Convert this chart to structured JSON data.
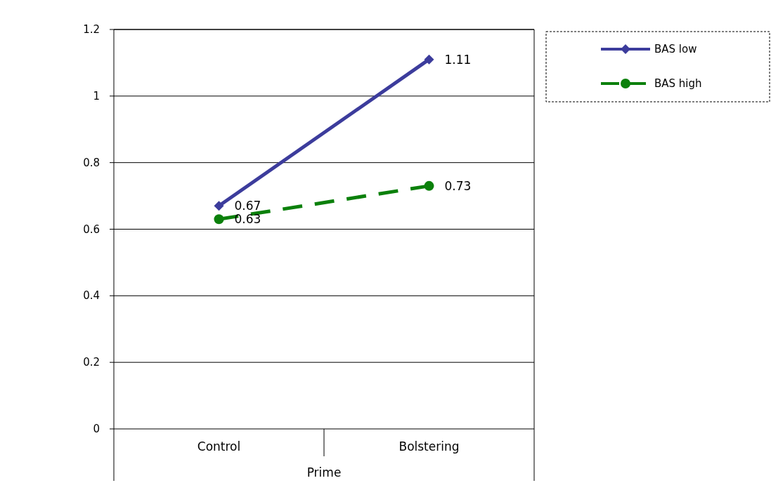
{
  "chart_data": {
    "type": "line",
    "xlabel": "Prime",
    "categories": [
      "Control",
      "Bolstering"
    ],
    "series": [
      {
        "name": "BAS low",
        "color": "#3c3c9c",
        "values": [
          0.67,
          1.11
        ],
        "marker": "diamond",
        "line_style": "solid"
      },
      {
        "name": "BAS high",
        "color": "#0b800b",
        "values": [
          0.63,
          0.73
        ],
        "marker": "circle",
        "line_style": "dashed"
      }
    ],
    "ylim": [
      0,
      1.2
    ],
    "yticks": [
      0,
      0.2,
      0.4,
      0.6,
      0.8,
      1,
      1.2
    ],
    "grid": "y",
    "legend": "top right",
    "data_labels": true
  }
}
